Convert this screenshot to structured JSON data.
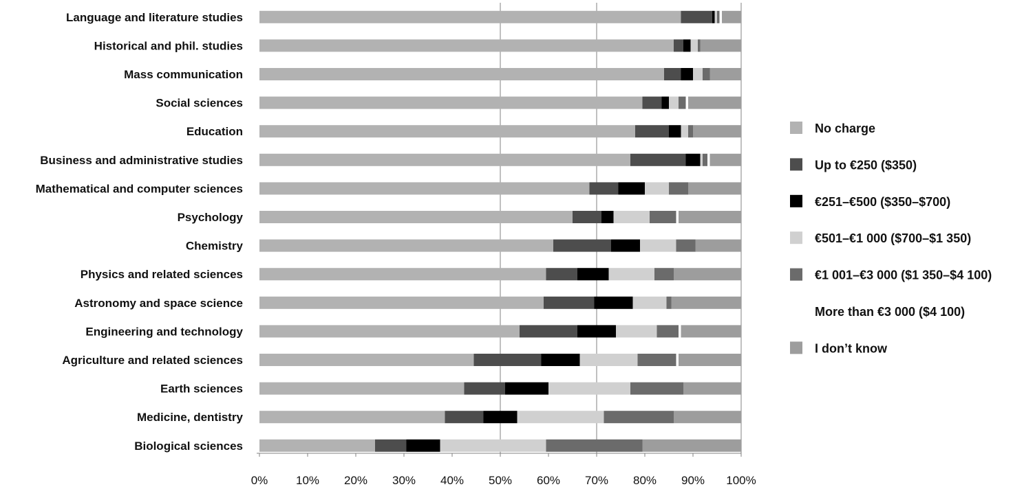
{
  "chart_data": {
    "type": "bar",
    "stacked": true,
    "orientation": "horizontal",
    "categories": [
      "Language and literature studies",
      "Historical and phil. studies",
      "Mass communication",
      "Social sciences",
      "Education",
      "Business and administrative studies",
      "Mathematical and computer sciences",
      "Psychology",
      "Chemistry",
      "Physics and related sciences",
      "Astronomy and space science",
      "Engineering and technology",
      "Agriculture and related sciences",
      "Earth sciences",
      "Medicine, dentistry",
      "Biological sciences"
    ],
    "series": [
      {
        "name": "No charge",
        "color": "#b2b2b2",
        "values": [
          87.5,
          86,
          84,
          79.5,
          78,
          77,
          68.5,
          65,
          61,
          59.5,
          59,
          54,
          44.5,
          42.5,
          38.5,
          24
        ]
      },
      {
        "name": "Up to €250 ($350)",
        "color": "#4d4d4d",
        "values": [
          6.5,
          2,
          3.5,
          4,
          7,
          11.5,
          6,
          6,
          12,
          6.5,
          10.5,
          12,
          14,
          8.5,
          8,
          6.5
        ]
      },
      {
        "name": "€251–€500 ($350–$700)",
        "color": "#000000",
        "values": [
          0.5,
          1.5,
          2.5,
          1.5,
          2.5,
          3,
          5.5,
          2.5,
          6,
          6.5,
          8,
          8,
          8,
          9,
          7,
          7
        ]
      },
      {
        "name": "€501–€1 000 ($700–$1 350)",
        "color": "#d0d0d0",
        "values": [
          0.5,
          1.5,
          2,
          2,
          1.5,
          0.5,
          5,
          7.5,
          7.5,
          9.5,
          7,
          8.5,
          12,
          17,
          18,
          22
        ]
      },
      {
        "name": "€1 001–€3 000 ($1 350–$4 100)",
        "color": "#6b6b6b",
        "values": [
          0.5,
          0.5,
          1.5,
          1.5,
          1,
          1,
          4,
          5.5,
          4,
          4,
          1,
          4.5,
          8,
          11,
          14.5,
          20
        ]
      },
      {
        "name": "More than €3 000 ($4 100)",
        "color": "#ffffff",
        "values": [
          0.5,
          0,
          0,
          0.5,
          0,
          0.5,
          0,
          0.5,
          0,
          0,
          0,
          0.5,
          0.5,
          0,
          0,
          0
        ]
      },
      {
        "name": "I don’t know",
        "color": "#9d9d9d",
        "values": [
          4,
          8.5,
          6.5,
          11,
          10,
          6.5,
          11,
          13,
          9.5,
          14,
          14.5,
          12.5,
          13,
          12,
          14,
          20.5
        ]
      }
    ],
    "xlim": [
      0,
      100
    ],
    "x_ticks": [
      "0%",
      "10%",
      "20%",
      "30%",
      "40%",
      "50%",
      "60%",
      "70%",
      "80%",
      "90%",
      "100%"
    ],
    "gridlines_at": [
      50,
      70,
      100
    ],
    "legend_position": "right"
  }
}
